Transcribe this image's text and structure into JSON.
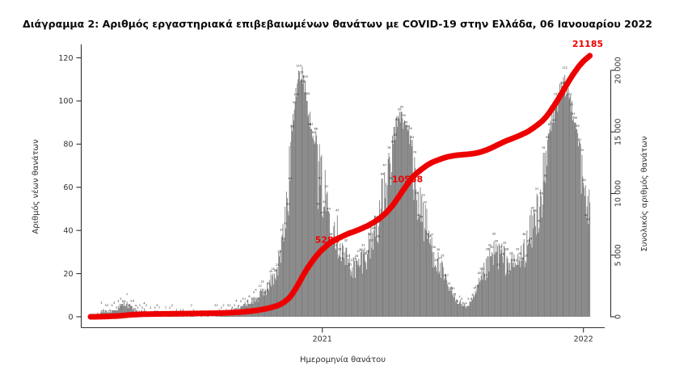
{
  "chart_data": {
    "type": "bar",
    "title": "Διάγραμμα 2: Αριθμός εργαστηριακά επιβεβαιωμένων θανάτων με COVID-19 στην Ελλάδα, 06 Ιανουαρίου 2022",
    "xlabel": "Ημερομηνία θανάτου",
    "ylabel_left": "Αριθμός νέων θανάτων",
    "ylabel_right": "Συνολικός αριθμός θανάτων",
    "y_left_ticks": [
      0,
      20,
      40,
      60,
      80,
      100,
      120
    ],
    "y_right_ticks": [
      0,
      5000,
      10000,
      15000,
      20000
    ],
    "ylim_left": [
      0,
      120
    ],
    "ylim_right": [
      0,
      20000
    ],
    "x_ticks": [
      {
        "label": "2021",
        "day": 324
      },
      {
        "label": "2022",
        "day": 689
      }
    ],
    "bar_color": "#7f7f7f",
    "bar_label_color": "#1a1a1a",
    "line_color": "#ed0000",
    "axis_color": "#303030",
    "grid": false,
    "legend": "none",
    "series": [
      {
        "name": "daily-deaths",
        "type": "bar",
        "note": "envelope control points [day, new_deaths]; day 0 ≈ mid-Feb 2020, day 324 = 2021-01-01, day 689 = 2022-01-01",
        "points": [
          [
            0,
            0
          ],
          [
            6,
            1
          ],
          [
            10,
            2
          ],
          [
            14,
            2
          ],
          [
            20,
            3
          ],
          [
            28,
            3
          ],
          [
            35,
            4
          ],
          [
            42,
            6
          ],
          [
            48,
            8
          ],
          [
            55,
            6
          ],
          [
            62,
            4
          ],
          [
            70,
            3
          ],
          [
            80,
            2
          ],
          [
            90,
            2
          ],
          [
            100,
            1
          ],
          [
            115,
            1
          ],
          [
            130,
            1
          ],
          [
            145,
            1
          ],
          [
            160,
            2
          ],
          [
            175,
            2
          ],
          [
            190,
            3
          ],
          [
            205,
            5
          ],
          [
            215,
            7
          ],
          [
            225,
            9
          ],
          [
            235,
            12
          ],
          [
            245,
            16
          ],
          [
            255,
            22
          ],
          [
            262,
            30
          ],
          [
            268,
            42
          ],
          [
            274,
            62
          ],
          [
            280,
            88
          ],
          [
            286,
            108
          ],
          [
            291,
            121
          ],
          [
            294,
            112
          ],
          [
            297,
            119
          ],
          [
            300,
            113
          ],
          [
            305,
            98
          ],
          [
            310,
            92
          ],
          [
            316,
            86
          ],
          [
            322,
            78
          ],
          [
            328,
            70
          ],
          [
            334,
            63
          ],
          [
            340,
            55
          ],
          [
            346,
            46
          ],
          [
            352,
            38
          ],
          [
            358,
            33
          ],
          [
            364,
            30
          ],
          [
            370,
            28
          ],
          [
            376,
            31
          ],
          [
            382,
            35
          ],
          [
            390,
            42
          ],
          [
            398,
            52
          ],
          [
            406,
            63
          ],
          [
            414,
            75
          ],
          [
            420,
            83
          ],
          [
            426,
            91
          ],
          [
            432,
            100
          ],
          [
            437,
            94
          ],
          [
            442,
            92
          ],
          [
            448,
            87
          ],
          [
            454,
            77
          ],
          [
            460,
            67
          ],
          [
            466,
            57
          ],
          [
            472,
            48
          ],
          [
            478,
            40
          ],
          [
            484,
            33
          ],
          [
            490,
            27
          ],
          [
            496,
            21
          ],
          [
            502,
            16
          ],
          [
            508,
            12
          ],
          [
            514,
            9
          ],
          [
            520,
            7
          ],
          [
            526,
            6
          ],
          [
            532,
            8
          ],
          [
            538,
            13
          ],
          [
            544,
            19
          ],
          [
            550,
            25
          ],
          [
            556,
            30
          ],
          [
            562,
            35
          ],
          [
            568,
            38
          ],
          [
            574,
            36
          ],
          [
            580,
            33
          ],
          [
            586,
            31
          ],
          [
            592,
            30
          ],
          [
            598,
            32
          ],
          [
            604,
            36
          ],
          [
            610,
            42
          ],
          [
            616,
            50
          ],
          [
            622,
            58
          ],
          [
            628,
            68
          ],
          [
            634,
            78
          ],
          [
            640,
            88
          ],
          [
            646,
            97
          ],
          [
            652,
            104
          ],
          [
            658,
            110
          ],
          [
            663,
            112
          ],
          [
            668,
            109
          ],
          [
            673,
            103
          ],
          [
            678,
            95
          ],
          [
            683,
            86
          ],
          [
            688,
            78
          ],
          [
            692,
            72
          ],
          [
            695,
            66
          ],
          [
            698,
            62
          ]
        ],
        "peak_values": [
          121,
          119,
          100,
          112
        ]
      },
      {
        "name": "cumulative-deaths",
        "type": "line",
        "final_value": 21185
      }
    ],
    "annotations": [
      {
        "label": "5283",
        "day": 331,
        "value": 6200
      },
      {
        "label": "10558",
        "day": 443,
        "value": 11100
      },
      {
        "label": "21185",
        "day": 695,
        "value": 21185,
        "dy": -11
      }
    ]
  }
}
